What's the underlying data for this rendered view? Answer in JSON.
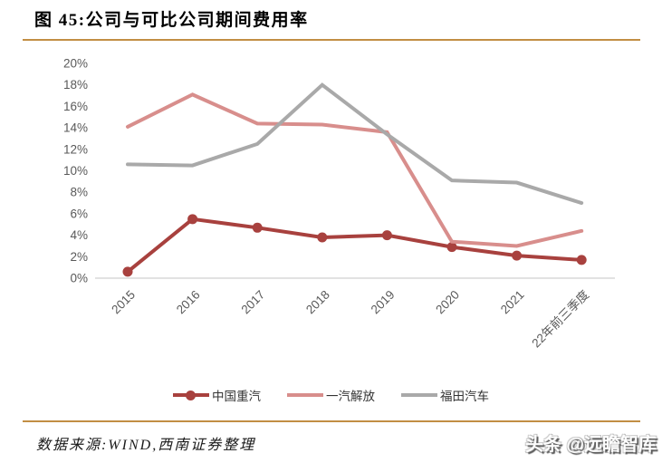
{
  "header": {
    "title": "图 45:公司与可比公司期间费用率"
  },
  "accent_color": "#C28E44",
  "chart_data": {
    "type": "line",
    "title": "公司与可比公司期间费用率",
    "categories": [
      "2015",
      "2016",
      "2017",
      "2018",
      "2019",
      "2020",
      "2021",
      "22年前三季度"
    ],
    "series": [
      {
        "name": "中国重汽",
        "color": "#A8413E",
        "marker": true,
        "values": [
          0.6,
          5.5,
          4.7,
          3.8,
          4.0,
          2.9,
          2.1,
          1.7
        ]
      },
      {
        "name": "一汽解放",
        "color": "#D88E8C",
        "marker": false,
        "values": [
          14.1,
          17.1,
          14.4,
          14.3,
          13.6,
          3.4,
          3.0,
          4.4
        ]
      },
      {
        "name": "福田汽车",
        "color": "#A9A9A9",
        "marker": false,
        "values": [
          10.6,
          10.5,
          12.5,
          18.0,
          13.4,
          9.1,
          8.9,
          7.0
        ]
      }
    ],
    "ylim": [
      0,
      20
    ],
    "ytick_step": 2,
    "ytick_labels": [
      "0%",
      "2%",
      "4%",
      "6%",
      "8%",
      "10%",
      "12%",
      "14%",
      "16%",
      "18%",
      "20%"
    ],
    "ytick_suffix": "%",
    "grid": false,
    "legend_position": "bottom",
    "axis_text_color": "#595959",
    "axis_line_color": "#D9D9D9"
  },
  "footer": {
    "source": "数据来源:WIND,西南证券整理",
    "watermark": "头条 @远瞻智库"
  }
}
